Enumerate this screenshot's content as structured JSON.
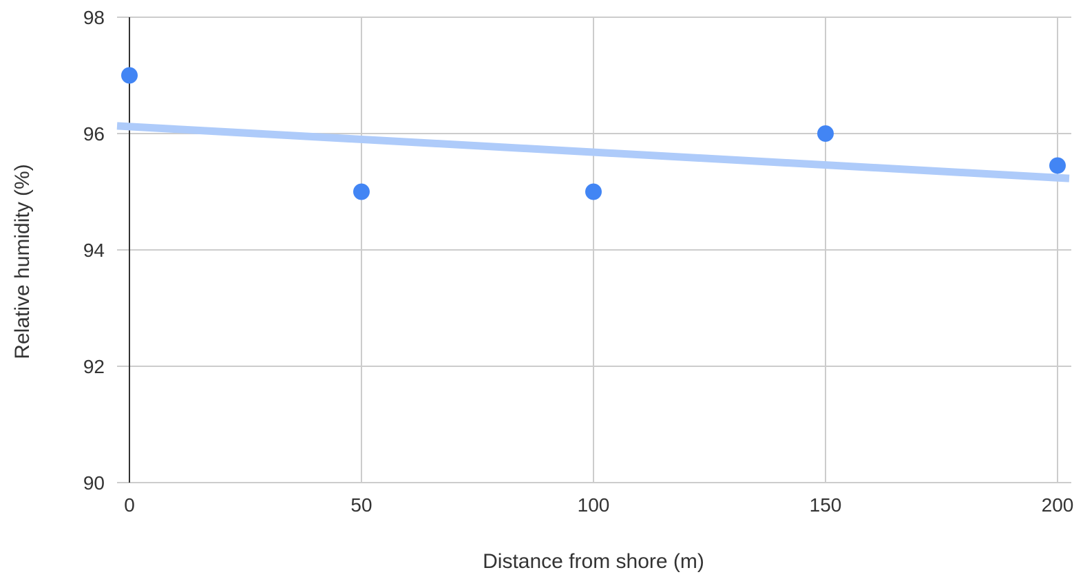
{
  "chart_data": {
    "type": "scatter",
    "title": "",
    "xlabel": "Distance from shore (m)",
    "ylabel": "Relative humidity (%)",
    "xlim": [
      0,
      200
    ],
    "ylim": [
      90,
      98
    ],
    "x_ticks": [
      0,
      50,
      100,
      150,
      200
    ],
    "y_ticks": [
      90,
      92,
      94,
      96,
      98
    ],
    "x_tick_labels": [
      "0",
      "50",
      "100",
      "150",
      "200"
    ],
    "y_tick_labels": [
      "90",
      "92",
      "94",
      "96",
      "98"
    ],
    "grid": true,
    "legend": "none",
    "series": [
      {
        "points": [
          {
            "x": 0,
            "y": 97
          },
          {
            "x": 50,
            "y": 95
          },
          {
            "x": 100,
            "y": 95
          },
          {
            "x": 150,
            "y": 96
          },
          {
            "x": 200,
            "y": 95.45
          }
        ],
        "color": "#4285f4"
      }
    ],
    "trendline": {
      "type": "linear",
      "from": {
        "x": 0,
        "y": 96.12
      },
      "to": {
        "x": 200,
        "y": 95.24
      },
      "color": "#aecbfa"
    }
  }
}
